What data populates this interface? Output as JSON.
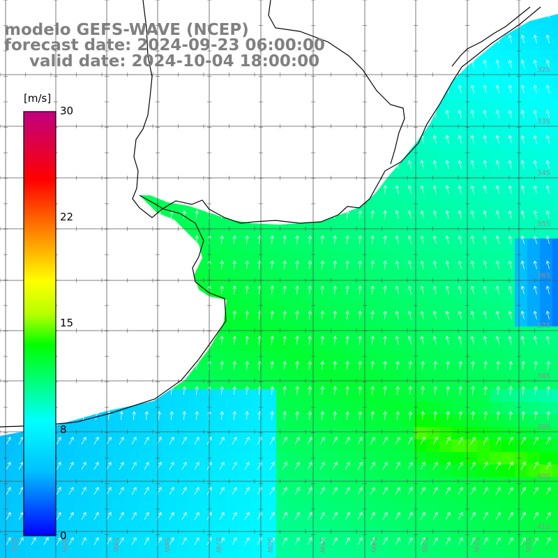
{
  "title": {
    "line1": "modelo GEFS-WAVE (NCEP)",
    "line2": "forecast date: 2024-09-23 06:00:00",
    "line3": "valid date: 2024-10-04 18:00:00"
  },
  "colorbar": {
    "unit": "[m/s]",
    "ticks": [
      "30",
      "22",
      "15",
      "8",
      "0"
    ],
    "min": 0,
    "max": 30,
    "colors": [
      "#0000ff",
      "#00bfff",
      "#00ffff",
      "#00ff00",
      "#ffff00",
      "#ff8000",
      "#ff0000",
      "#c00080"
    ]
  },
  "map": {
    "variable": "wind speed",
    "lat_labels": [
      "32S",
      "33S",
      "34S",
      "35S",
      "36S",
      "37S",
      "38S",
      "39S",
      "40S",
      "41S"
    ],
    "lon_labels": [
      "61W",
      "60W",
      "59W",
      "58W",
      "57W",
      "56W",
      "55W",
      "54W",
      "53W",
      "52W",
      "51W"
    ],
    "land_color": "#ffffff",
    "grid_color": "#555555",
    "arrow_color": "#ffffff"
  }
}
